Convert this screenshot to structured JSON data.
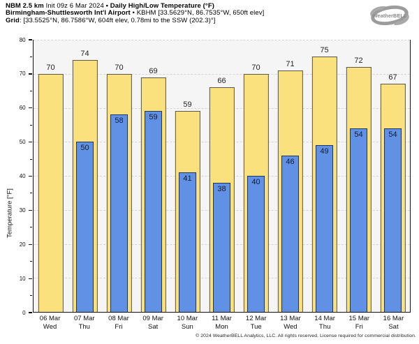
{
  "header": {
    "line1": {
      "model": "NBM 2.5 km",
      "init": " Init 09z 6 Mar 2024 ",
      "product": "• Daily High/Low Temperature (°F)"
    },
    "line2": {
      "station_name": "Birmingham-Shuttlesworth Int'l Airport",
      "station_info": " • KBHM [33.5629°N, 86.7535°W, 650ft elev]"
    },
    "line3": {
      "label": "Grid",
      "info": ": [33.5525°N, 86.7586°W, 604ft elev, 0.78mi to the SSW (202.3)°]"
    }
  },
  "logo": {
    "brand": "WeatherBELL"
  },
  "footer": "© 2024 WeatherBELL Analytics, LLC. All rights reserved. License required for commercial distribution.",
  "chart_data": {
    "type": "bar",
    "title": "Daily High/Low Temperature (°F)",
    "ylabel": "Temperature [°F]",
    "ylim": [
      0,
      80
    ],
    "yticks": [
      0,
      10,
      20,
      30,
      40,
      50,
      60,
      70,
      80
    ],
    "minor_tick_step": 5,
    "grid": "horizontal-dashed",
    "legend_position": "none",
    "categories": [
      "06 Mar",
      "07 Mar",
      "08 Mar",
      "09 Mar",
      "10 Mar",
      "11 Mar",
      "12 Mar",
      "13 Mar",
      "14 Mar",
      "15 Mar",
      "16 Mar"
    ],
    "weekdays": [
      "Wed",
      "Thu",
      "Fri",
      "Sat",
      "Sun",
      "Mon",
      "Tue",
      "Wed",
      "Thu",
      "Fri",
      "Sat"
    ],
    "series": [
      {
        "name": "Daily High",
        "color": "#fbe07e",
        "values": [
          70,
          74,
          70,
          69,
          59,
          66,
          70,
          71,
          75,
          72,
          67
        ]
      },
      {
        "name": "Daily Low",
        "color": "#6191e4",
        "values": [
          null,
          50,
          58,
          59,
          41,
          38,
          40,
          46,
          49,
          54,
          54
        ]
      }
    ]
  },
  "colors": {
    "high_fill": "#fbe07e",
    "high_border": "#5a564a",
    "low_fill": "#6191e4",
    "low_border": "#20355c",
    "plot_bg": "#f5f5f5",
    "grid_line": "#d6d6d6",
    "axis": "#111111"
  }
}
